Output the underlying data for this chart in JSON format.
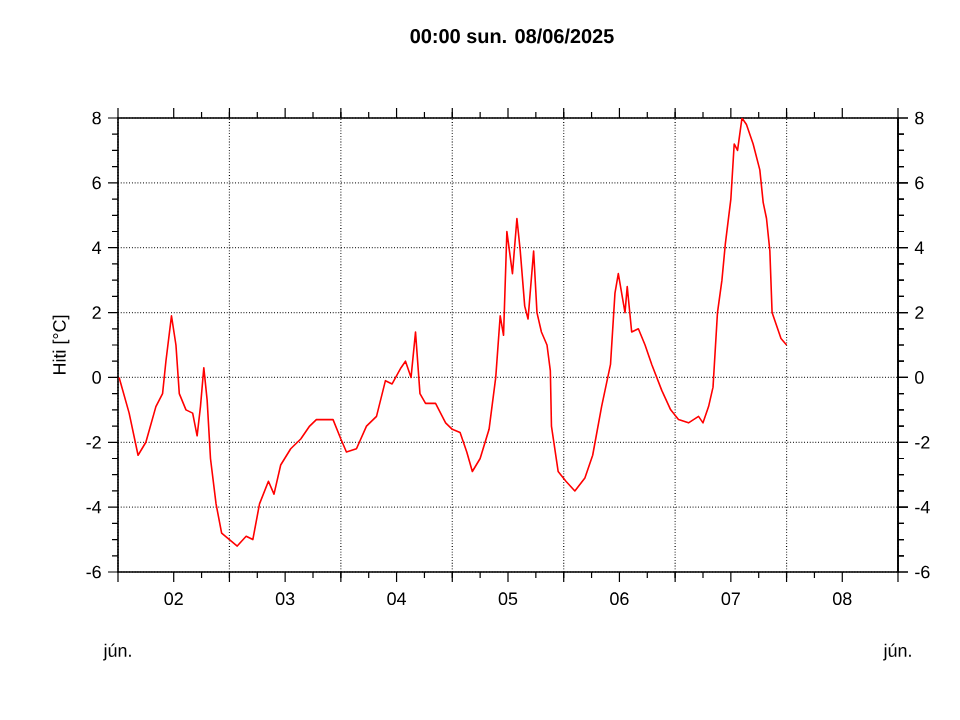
{
  "chart_data": {
    "type": "line",
    "title": "00:00   sun.  08/06/2025",
    "ylabel": "Hiti [°C]",
    "annotations": [
      "jún.",
      "jún."
    ],
    "x": [
      2.01,
      2.1,
      2.18,
      2.25,
      2.34,
      2.4,
      2.43,
      2.48,
      2.52,
      2.55,
      2.61,
      2.67,
      2.71,
      2.74,
      2.77,
      2.8,
      2.83,
      2.88,
      2.93,
      3.0,
      3.07,
      3.15,
      3.21,
      3.27,
      3.35,
      3.4,
      3.46,
      3.55,
      3.64,
      3.72,
      3.78,
      3.87,
      3.93,
      4.0,
      4.05,
      4.14,
      4.23,
      4.32,
      4.4,
      4.46,
      4.54,
      4.58,
      4.63,
      4.67,
      4.71,
      4.76,
      4.85,
      4.94,
      5.0,
      5.07,
      5.13,
      5.18,
      5.25,
      5.33,
      5.39,
      5.43,
      5.46,
      5.49,
      5.54,
      5.58,
      5.61,
      5.65,
      5.68,
      5.73,
      5.76,
      5.8,
      5.85,
      5.88,
      5.89,
      5.95,
      6.02,
      6.1,
      6.19,
      6.26,
      6.34,
      6.42,
      6.46,
      6.49,
      6.55,
      6.57,
      6.61,
      6.67,
      6.73,
      6.79,
      6.88,
      6.96,
      7.03,
      7.12,
      7.21,
      7.25,
      7.3,
      7.34,
      7.38,
      7.42,
      7.45,
      7.5,
      7.53,
      7.56,
      7.6,
      7.64,
      7.7,
      7.76,
      7.79,
      7.82,
      7.85,
      7.87,
      7.91,
      7.95,
      8.0
    ],
    "series": [
      {
        "color": "#ff0000",
        "values": [
          0.0,
          -1.1,
          -2.4,
          -2.0,
          -0.9,
          -0.5,
          0.5,
          1.9,
          1.0,
          -0.5,
          -1.0,
          -1.1,
          -1.8,
          -0.9,
          0.3,
          -0.7,
          -2.5,
          -3.9,
          -4.8,
          -5.0,
          -5.2,
          -4.9,
          -5.0,
          -3.9,
          -3.2,
          -3.6,
          -2.7,
          -2.2,
          -1.9,
          -1.5,
          -1.3,
          -1.3,
          -1.3,
          -1.9,
          -2.3,
          -2.2,
          -1.5,
          -1.2,
          -0.1,
          -0.2,
          0.3,
          0.5,
          0.0,
          1.4,
          -0.5,
          -0.8,
          -0.8,
          -1.4,
          -1.6,
          -1.7,
          -2.3,
          -2.9,
          -2.5,
          -1.6,
          0.0,
          1.9,
          1.3,
          4.5,
          3.2,
          4.9,
          3.9,
          2.2,
          1.8,
          3.9,
          2.0,
          1.4,
          1.0,
          0.2,
          -1.5,
          -2.9,
          -3.2,
          -3.5,
          -3.1,
          -2.4,
          -0.9,
          0.4,
          2.6,
          3.2,
          2.0,
          2.8,
          1.4,
          1.5,
          1.0,
          0.4,
          -0.4,
          -1.0,
          -1.3,
          -1.4,
          -1.2,
          -1.4,
          -0.9,
          -0.3,
          2.0,
          3.0,
          4.1,
          5.5,
          7.2,
          7.0,
          8.0,
          7.8,
          7.2,
          6.4,
          5.4,
          4.9,
          3.9,
          2.0,
          1.6,
          1.2,
          1.0
        ]
      }
    ],
    "xlim": [
      2,
      9
    ],
    "xticks": [
      {
        "value": 2,
        "label": null
      },
      {
        "value": 2.5,
        "label": "02"
      },
      {
        "value": 3,
        "label": null
      },
      {
        "value": 3.5,
        "label": "03"
      },
      {
        "value": 4,
        "label": null
      },
      {
        "value": 4.5,
        "label": "04"
      },
      {
        "value": 5,
        "label": null
      },
      {
        "value": 5.5,
        "label": "05"
      },
      {
        "value": 6,
        "label": null
      },
      {
        "value": 6.5,
        "label": "06"
      },
      {
        "value": 7,
        "label": null
      },
      {
        "value": 7.5,
        "label": "07"
      },
      {
        "value": 8,
        "label": null
      },
      {
        "value": 8.5,
        "label": "08"
      },
      {
        "value": 9,
        "label": null
      }
    ],
    "ylim": [
      -6,
      8
    ],
    "yticks": [
      -6,
      -4,
      -2,
      0,
      2,
      4,
      6,
      8
    ],
    "y2lim": [
      -6,
      8
    ],
    "y2ticks": [
      -6,
      -4,
      -2,
      0,
      2,
      4,
      6,
      8
    ],
    "grid": true,
    "marker": "none",
    "line_style": "solid"
  }
}
